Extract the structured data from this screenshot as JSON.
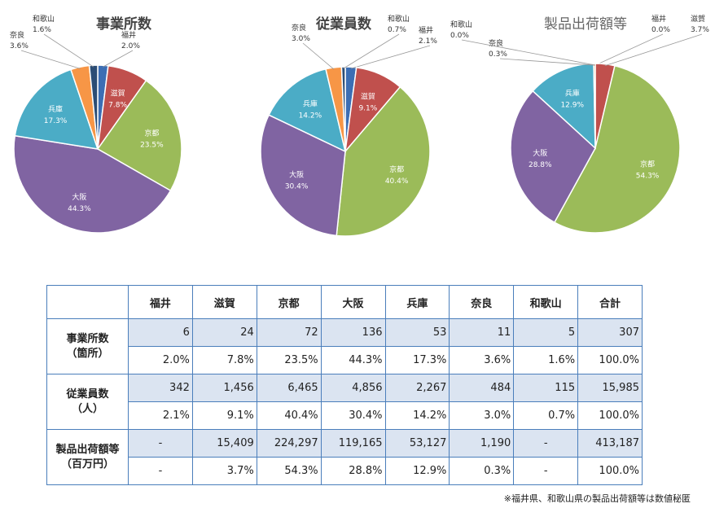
{
  "chart_data": [
    {
      "type": "pie",
      "title": "事業所数",
      "categories": [
        "福井",
        "滋賀",
        "京都",
        "大阪",
        "兵庫",
        "奈良",
        "和歌山"
      ],
      "values": [
        2.0,
        7.8,
        23.5,
        44.3,
        17.3,
        3.6,
        1.6
      ],
      "labels": [
        "2.0%",
        "7.8%",
        "23.5%",
        "44.3%",
        "17.3%",
        "3.6%",
        "1.6%"
      ]
    },
    {
      "type": "pie",
      "title": "従業員数",
      "categories": [
        "福井",
        "滋賀",
        "京都",
        "大阪",
        "兵庫",
        "奈良",
        "和歌山"
      ],
      "values": [
        2.1,
        9.1,
        40.4,
        30.4,
        14.2,
        3.0,
        0.7
      ],
      "labels": [
        "2.1%",
        "9.1%",
        "40.4%",
        "30.4%",
        "14.2%",
        "3.0%",
        "0.7%"
      ]
    },
    {
      "type": "pie",
      "title": "製品出荷額等",
      "categories": [
        "福井",
        "滋賀",
        "京都",
        "大阪",
        "兵庫",
        "奈良",
        "和歌山"
      ],
      "values": [
        0.0,
        3.7,
        54.3,
        28.8,
        12.9,
        0.3,
        0.0
      ],
      "labels": [
        "0.0%",
        "3.7%",
        "54.3%",
        "28.8%",
        "12.9%",
        "0.3%",
        "0.0%"
      ]
    }
  ],
  "colors": {
    "福井": "#3c6eb4",
    "滋賀": "#c0504d",
    "京都": "#9bbb59",
    "大阪": "#8064a2",
    "兵庫": "#4bacc6",
    "奈良": "#f79646",
    "和歌山": "#2c4d75"
  },
  "table": {
    "headers": [
      "福井",
      "滋賀",
      "京都",
      "大阪",
      "兵庫",
      "奈良",
      "和歌山",
      "合計"
    ],
    "groups": [
      {
        "label1": "事業所数",
        "label2": "（箇所）",
        "counts": [
          "6",
          "24",
          "72",
          "136",
          "53",
          "11",
          "5",
          "307"
        ],
        "shares": [
          "2.0%",
          "7.8%",
          "23.5%",
          "44.3%",
          "17.3%",
          "3.6%",
          "1.6%",
          "100.0%"
        ]
      },
      {
        "label1": "従業員数",
        "label2": "（人）",
        "counts": [
          "342",
          "1,456",
          "6,465",
          "4,856",
          "2,267",
          "484",
          "115",
          "15,985"
        ],
        "shares": [
          "2.1%",
          "9.1%",
          "40.4%",
          "30.4%",
          "14.2%",
          "3.0%",
          "0.7%",
          "100.0%"
        ]
      },
      {
        "label1": "製品出荷額等",
        "label2": "（百万円）",
        "counts": [
          "-",
          "15,409",
          "224,297",
          "119,165",
          "53,127",
          "1,190",
          "-",
          "413,187"
        ],
        "shares": [
          "-",
          "3.7%",
          "54.3%",
          "28.8%",
          "12.9%",
          "0.3%",
          "-",
          "100.0%"
        ]
      }
    ]
  },
  "footnote": "※福井県、和歌山県の製品出荷額等は数値秘匿"
}
